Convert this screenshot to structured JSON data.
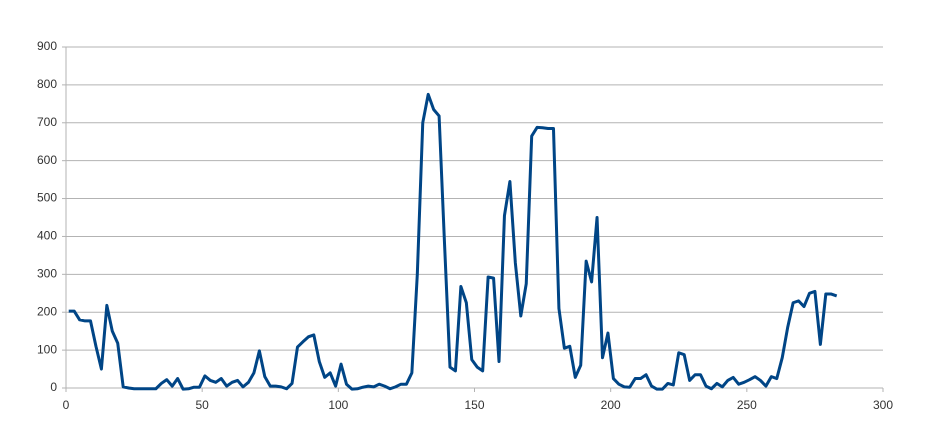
{
  "chart_data": {
    "type": "line",
    "x": [
      1,
      3,
      5,
      7,
      9,
      11,
      13,
      15,
      17,
      19,
      21,
      23,
      25,
      27,
      29,
      31,
      33,
      35,
      37,
      39,
      41,
      43,
      45,
      47,
      49,
      51,
      53,
      55,
      57,
      59,
      61,
      63,
      65,
      67,
      69,
      71,
      73,
      75,
      77,
      79,
      81,
      83,
      85,
      87,
      89,
      91,
      93,
      95,
      97,
      99,
      101,
      103,
      105,
      107,
      109,
      111,
      113,
      115,
      117,
      119,
      121,
      123,
      125,
      127,
      129,
      131,
      133,
      135,
      137,
      139,
      141,
      143,
      145,
      147,
      149,
      151,
      153,
      155,
      157,
      159,
      161,
      163,
      165,
      167,
      169,
      171,
      173,
      175,
      177,
      179,
      181,
      183,
      185,
      187,
      189,
      191,
      193,
      195,
      197,
      199,
      201,
      203,
      205,
      207,
      209,
      211,
      213,
      215,
      217,
      219,
      221,
      223,
      225,
      227,
      229,
      231,
      233,
      235,
      237,
      239,
      241,
      243,
      245,
      247,
      249,
      251,
      253,
      255,
      257,
      259,
      261,
      263,
      265,
      267,
      269,
      271,
      273,
      275,
      277,
      279,
      281,
      283
    ],
    "series": [
      {
        "color": "#004586",
        "values": [
          203,
          203,
          180,
          177,
          177,
          110,
          50,
          218,
          150,
          118,
          3,
          0,
          -2,
          -2,
          -2,
          -2,
          -2,
          12,
          22,
          5,
          25,
          -3,
          -2,
          2,
          2,
          32,
          20,
          15,
          25,
          5,
          15,
          20,
          3,
          15,
          40,
          98,
          30,
          5,
          5,
          3,
          -2,
          12,
          108,
          122,
          135,
          140,
          70,
          28,
          40,
          5,
          63,
          10,
          -3,
          -2,
          2,
          5,
          3,
          10,
          5,
          -2,
          3,
          10,
          10,
          40,
          300,
          700,
          775,
          735,
          718,
          380,
          55,
          45,
          268,
          225,
          75,
          55,
          45,
          293,
          290,
          70,
          455,
          545,
          330,
          190,
          275,
          665,
          688,
          687,
          685,
          685,
          210,
          105,
          110,
          28,
          60,
          335,
          280,
          450,
          80,
          145,
          25,
          10,
          3,
          2,
          25,
          25,
          35,
          5,
          -3,
          -3,
          12,
          8,
          93,
          88,
          20,
          35,
          35,
          5,
          -2,
          12,
          3,
          20,
          28,
          10,
          15,
          22,
          30,
          20,
          5,
          30,
          25,
          80,
          160,
          225,
          230,
          215,
          250,
          255,
          115,
          248,
          248,
          243
        ]
      }
    ],
    "xlim": [
      0,
      300
    ],
    "xticks": [
      0,
      50,
      100,
      150,
      200,
      250,
      300
    ],
    "ylim": [
      0,
      900
    ],
    "yticks": [
      0,
      100,
      200,
      300,
      400,
      500,
      600,
      700,
      800,
      900
    ],
    "grid": true
  }
}
